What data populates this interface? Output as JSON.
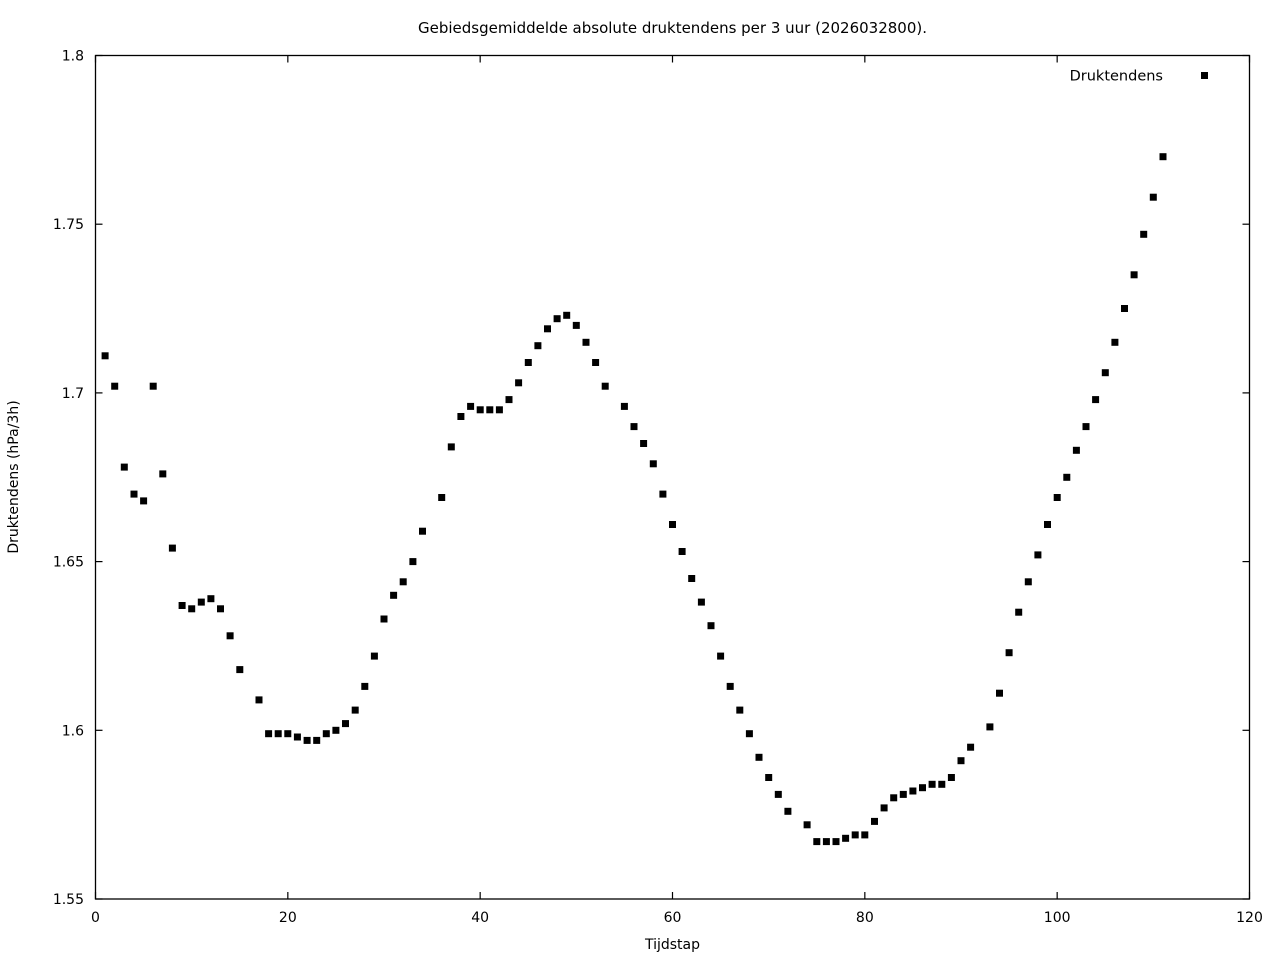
{
  "colors": {
    "background": "#ffffff",
    "foreground": "#000000",
    "marker": "#000000"
  },
  "chart_data": {
    "type": "scatter",
    "title": "Gebiedsgemiddelde absolute druktendens per 3 uur (2026032800).",
    "xlabel": "Tijdstap",
    "ylabel": "Druktendens (hPa/3h)",
    "xlim": [
      0,
      120
    ],
    "ylim": [
      1.55,
      1.8
    ],
    "xticks": [
      0,
      20,
      40,
      60,
      80,
      100,
      120
    ],
    "xtick_labels": [
      "0",
      "20",
      "40",
      "60",
      "80",
      "100",
      "120"
    ],
    "yticks": [
      1.55,
      1.6,
      1.65,
      1.7,
      1.75,
      1.8
    ],
    "ytick_labels": [
      "1.55",
      "1.6",
      "1.65",
      "1.7",
      "1.75",
      "1.8"
    ],
    "grid": false,
    "legend": {
      "position": "top-right-inside",
      "entries": [
        {
          "label": "Druktendens",
          "marker": "filled-square",
          "color": "#000000"
        }
      ]
    },
    "marker": {
      "shape": "filled-square",
      "size": 7,
      "color": "#000000"
    },
    "series": [
      {
        "name": "Druktendens",
        "points": [
          [
            1,
            1.711
          ],
          [
            2,
            1.702
          ],
          [
            3,
            1.678
          ],
          [
            4,
            1.67
          ],
          [
            5,
            1.668
          ],
          [
            6,
            1.702
          ],
          [
            7,
            1.676
          ],
          [
            8,
            1.654
          ],
          [
            9,
            1.637
          ],
          [
            10,
            1.636
          ],
          [
            11,
            1.638
          ],
          [
            12,
            1.639
          ],
          [
            13,
            1.636
          ],
          [
            14,
            1.628
          ],
          [
            15,
            1.618
          ],
          [
            17,
            1.609
          ],
          [
            18,
            1.599
          ],
          [
            19,
            1.599
          ],
          [
            20,
            1.599
          ],
          [
            21,
            1.598
          ],
          [
            22,
            1.597
          ],
          [
            23,
            1.597
          ],
          [
            24,
            1.599
          ],
          [
            25,
            1.6
          ],
          [
            26,
            1.602
          ],
          [
            27,
            1.606
          ],
          [
            28,
            1.613
          ],
          [
            29,
            1.622
          ],
          [
            30,
            1.633
          ],
          [
            31,
            1.64
          ],
          [
            32,
            1.644
          ],
          [
            33,
            1.65
          ],
          [
            34,
            1.659
          ],
          [
            36,
            1.669
          ],
          [
            37,
            1.684
          ],
          [
            38,
            1.693
          ],
          [
            39,
            1.696
          ],
          [
            40,
            1.695
          ],
          [
            41,
            1.695
          ],
          [
            42,
            1.695
          ],
          [
            43,
            1.698
          ],
          [
            44,
            1.703
          ],
          [
            45,
            1.709
          ],
          [
            46,
            1.714
          ],
          [
            47,
            1.719
          ],
          [
            48,
            1.722
          ],
          [
            49,
            1.723
          ],
          [
            50,
            1.72
          ],
          [
            51,
            1.715
          ],
          [
            52,
            1.709
          ],
          [
            53,
            1.702
          ],
          [
            55,
            1.696
          ],
          [
            56,
            1.69
          ],
          [
            57,
            1.685
          ],
          [
            58,
            1.679
          ],
          [
            59,
            1.67
          ],
          [
            60,
            1.661
          ],
          [
            61,
            1.653
          ],
          [
            62,
            1.645
          ],
          [
            63,
            1.638
          ],
          [
            64,
            1.631
          ],
          [
            65,
            1.622
          ],
          [
            66,
            1.613
          ],
          [
            67,
            1.606
          ],
          [
            68,
            1.599
          ],
          [
            69,
            1.592
          ],
          [
            70,
            1.586
          ],
          [
            71,
            1.581
          ],
          [
            72,
            1.576
          ],
          [
            74,
            1.572
          ],
          [
            75,
            1.567
          ],
          [
            76,
            1.567
          ],
          [
            77,
            1.567
          ],
          [
            78,
            1.568
          ],
          [
            79,
            1.569
          ],
          [
            80,
            1.569
          ],
          [
            81,
            1.573
          ],
          [
            82,
            1.577
          ],
          [
            83,
            1.58
          ],
          [
            84,
            1.581
          ],
          [
            85,
            1.582
          ],
          [
            86,
            1.583
          ],
          [
            87,
            1.584
          ],
          [
            88,
            1.584
          ],
          [
            89,
            1.586
          ],
          [
            90,
            1.591
          ],
          [
            91,
            1.595
          ],
          [
            93,
            1.601
          ],
          [
            94,
            1.611
          ],
          [
            95,
            1.623
          ],
          [
            96,
            1.635
          ],
          [
            97,
            1.644
          ],
          [
            98,
            1.652
          ],
          [
            99,
            1.661
          ],
          [
            100,
            1.669
          ],
          [
            101,
            1.675
          ],
          [
            102,
            1.683
          ],
          [
            103,
            1.69
          ],
          [
            104,
            1.698
          ],
          [
            105,
            1.706
          ],
          [
            106,
            1.715
          ],
          [
            107,
            1.725
          ],
          [
            108,
            1.735
          ],
          [
            109,
            1.747
          ],
          [
            110,
            1.758
          ],
          [
            111,
            1.77
          ]
        ]
      }
    ]
  }
}
